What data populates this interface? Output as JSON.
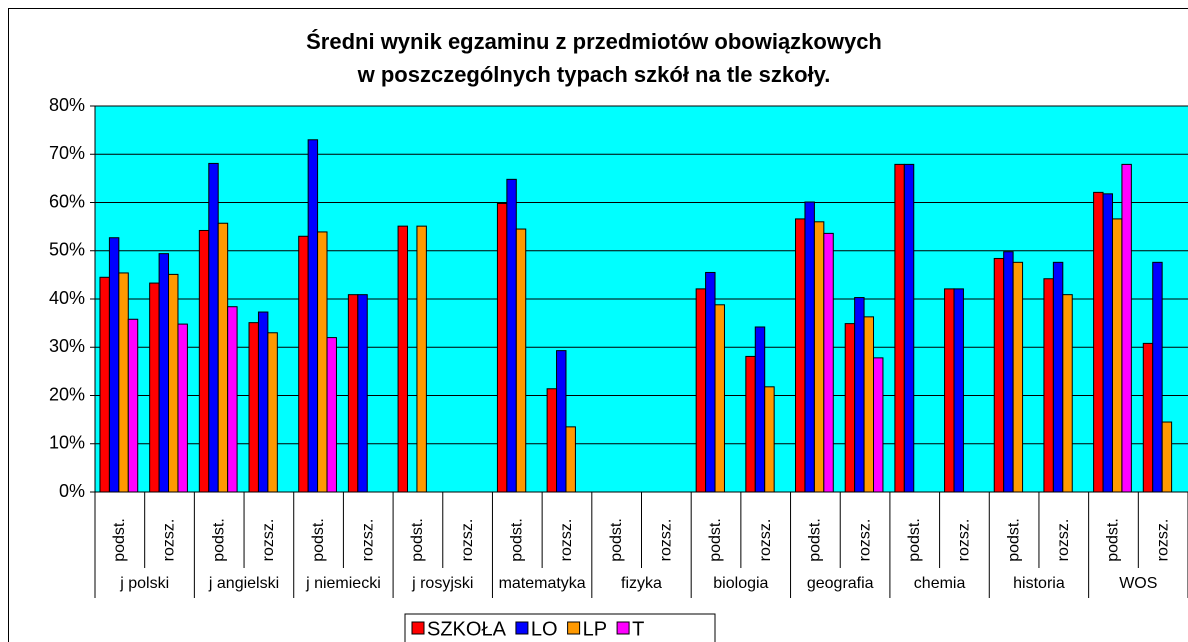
{
  "chart_data": {
    "type": "bar",
    "title": [
      "Średni wynik egzaminu z przedmiotów obowiązkowych",
      "w poszczególnych typach szkół na tle szkoły."
    ],
    "groups": [
      "j polski",
      "j angielski",
      "j niemiecki",
      "j rosyjski",
      "matematyka",
      "fizyka",
      "biologia",
      "geografia",
      "chemia",
      "historia",
      "WOS"
    ],
    "categories": [
      "podst.",
      "rozsz.",
      "podst.",
      "rozsz.",
      "podst.",
      "rozsz.",
      "podst.",
      "rozsz.",
      "podst.",
      "rozsz.",
      "podst.",
      "rozsz.",
      "podst.",
      "rozsz.",
      "podst.",
      "rozsz.",
      "podst.",
      "rozsz.",
      "podst.",
      "rozsz.",
      "podst.",
      "rozsz."
    ],
    "series": [
      {
        "name": "SZKOŁA",
        "color": "#ff0000",
        "values": [
          44.5,
          43.3,
          54.2,
          35.1,
          53.0,
          40.9,
          55.1,
          null,
          59.8,
          21.4,
          null,
          null,
          42.1,
          28.1,
          56.6,
          34.9,
          67.9,
          42.1,
          48.4,
          44.2,
          62.1,
          30.8
        ]
      },
      {
        "name": "LO",
        "color": "#0000ff",
        "values": [
          52.7,
          49.4,
          68.1,
          37.3,
          73.0,
          40.9,
          null,
          null,
          64.8,
          29.3,
          null,
          null,
          45.5,
          34.2,
          60.1,
          40.3,
          67.9,
          42.1,
          49.8,
          47.6,
          61.8,
          47.6
        ]
      },
      {
        "name": "LP",
        "color": "#ff9900",
        "values": [
          45.4,
          45.1,
          55.7,
          33.0,
          53.9,
          null,
          55.1,
          null,
          54.5,
          13.5,
          null,
          null,
          38.8,
          21.8,
          56.0,
          36.3,
          null,
          null,
          47.6,
          40.9,
          56.6,
          14.5
        ]
      },
      {
        "name": "T",
        "color": "#ff00ff",
        "values": [
          35.8,
          34.8,
          38.4,
          null,
          32.0,
          null,
          null,
          null,
          null,
          null,
          null,
          null,
          null,
          null,
          53.6,
          27.8,
          null,
          null,
          null,
          null,
          67.9,
          null
        ]
      }
    ],
    "ylim": [
      0,
      80
    ],
    "yticks": [
      {
        "value": 0,
        "label": "0%"
      },
      {
        "value": 10,
        "label": "10%"
      },
      {
        "value": 20,
        "label": "20%"
      },
      {
        "value": 30,
        "label": "30%"
      },
      {
        "value": 40,
        "label": "40%"
      },
      {
        "value": 50,
        "label": "50%"
      },
      {
        "value": 60,
        "label": "60%"
      },
      {
        "value": 70,
        "label": "70%"
      },
      {
        "value": 80,
        "label": "80%"
      }
    ],
    "grid": true,
    "plot_background": "#00ffff",
    "legend": "bottom"
  }
}
